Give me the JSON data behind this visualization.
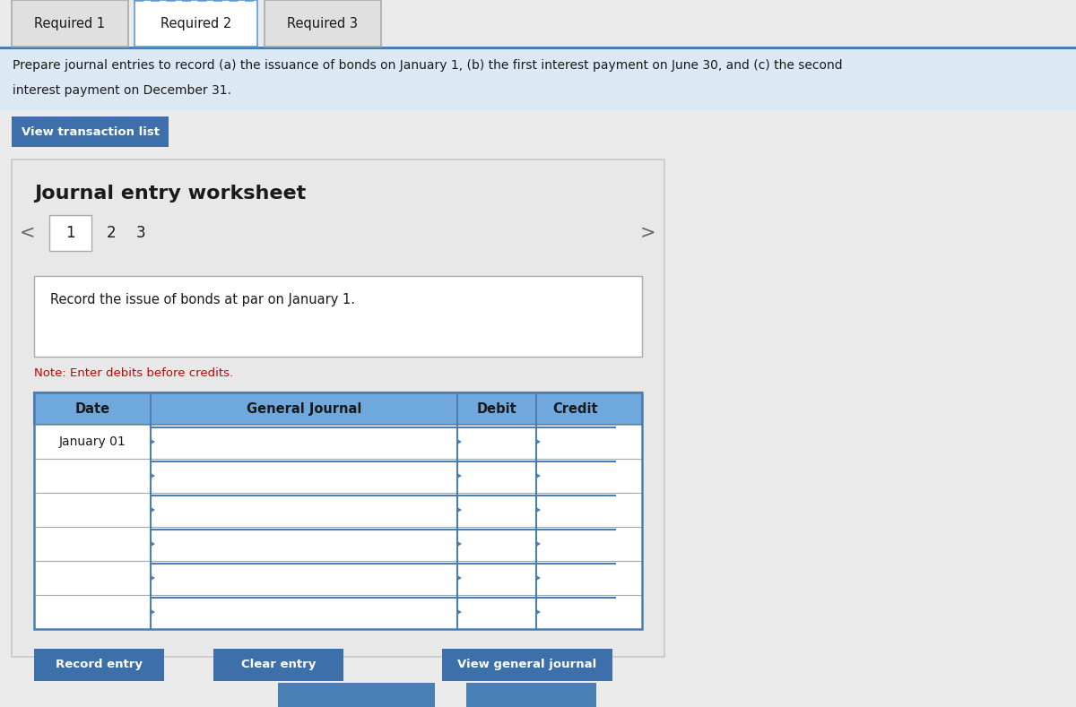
{
  "tab_labels": [
    "Required 1",
    "Required 2",
    "Required 3"
  ],
  "active_tab": 1,
  "description_line1": "Prepare journal entries to record (a) the issuance of bonds on January 1, (b) the first interest payment on June 30, and (c) the second",
  "description_line2": "interest payment on December 31.",
  "btn_transaction": "View transaction list",
  "worksheet_title": "Journal entry worksheet",
  "record_instruction": "Record the issue of bonds at par on January 1.",
  "note_text": "Note: Enter debits before credits.",
  "table_headers": [
    "Date",
    "General Journal",
    "Debit",
    "Credit"
  ],
  "first_row_date": "January 01",
  "num_data_rows": 6,
  "btn_record": "Record entry",
  "btn_clear": "Clear entry",
  "btn_view": "View general journal",
  "bg_color": "#ebebeb",
  "white": "#ffffff",
  "tab_active_bg": "#ffffff",
  "tab_inactive_bg": "#e0e0e0",
  "tab_border_active": "#5b9bd5",
  "desc_bg": "#dce9f5",
  "btn_blue": "#3d6faa",
  "table_header_bg": "#6fa8dc",
  "table_border": "#4a7fb5",
  "note_color": "#cc0000",
  "text_dark": "#1a1a1a",
  "panel_bg": "#e8e8e8",
  "panel_border": "#c8c8c8",
  "bottom_bar_color": "#4a7fb5",
  "sep_color": "#4a7fb5"
}
